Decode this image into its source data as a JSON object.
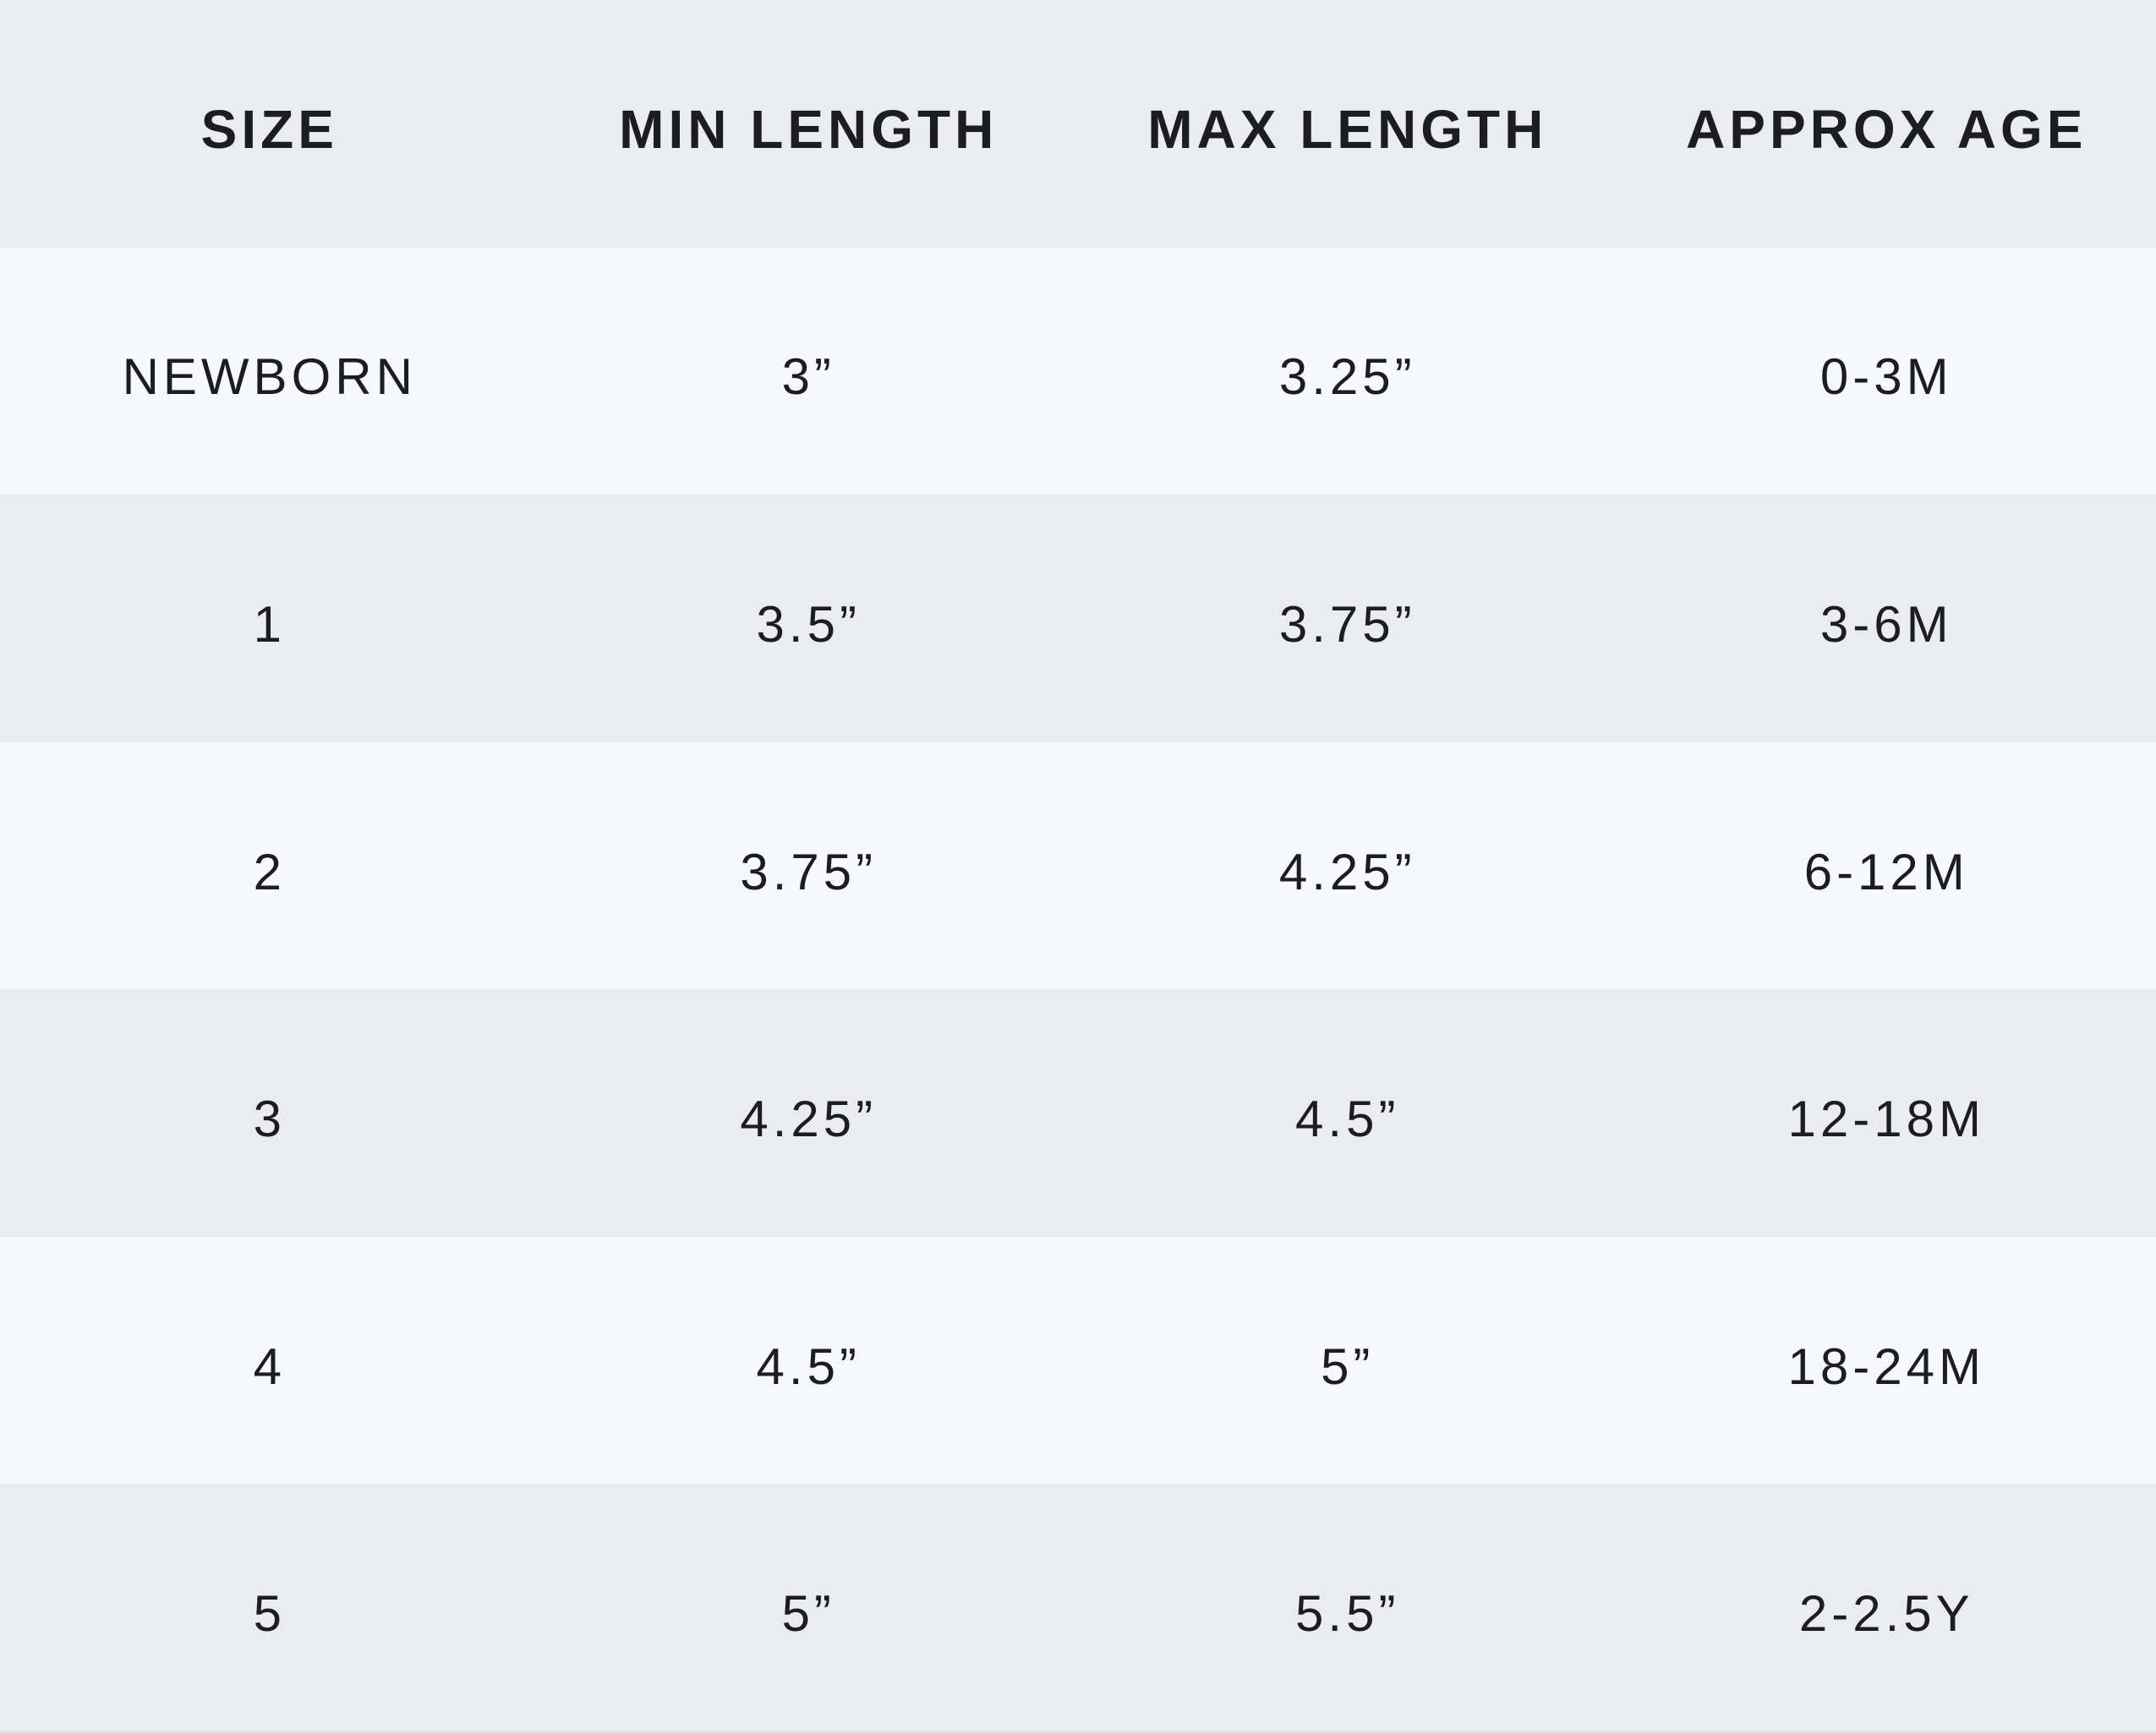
{
  "chart_data": {
    "type": "table",
    "headers": [
      "SIZE",
      "MIN LENGTH",
      "MAX LENGTH",
      "APPROX AGE"
    ],
    "rows": [
      [
        "NEWBORN",
        "3”",
        "3.25”",
        "0-3M"
      ],
      [
        "1",
        "3.5”",
        "3.75”",
        "3-6M"
      ],
      [
        "2",
        "3.75”",
        "4.25”",
        "6-12M"
      ],
      [
        "3",
        "4.25”",
        "4.5”",
        "12-18M"
      ],
      [
        "4",
        "4.5”",
        "5”",
        "18-24M"
      ],
      [
        "5",
        "5”",
        "5.5”",
        "2-2.5Y"
      ]
    ],
    "layout": {
      "columns_equal_width": true,
      "row_striping": [
        "header-gray",
        "light",
        "gray",
        "light",
        "gray",
        "light",
        "gray"
      ]
    }
  },
  "colors": {
    "header_bg": "#EBECEE",
    "row_light_bg": "#F7F8FA",
    "row_gray_bg": "#EBECEE",
    "text": "#1C1D1F",
    "bottom_edge": "#DCDDE0"
  }
}
